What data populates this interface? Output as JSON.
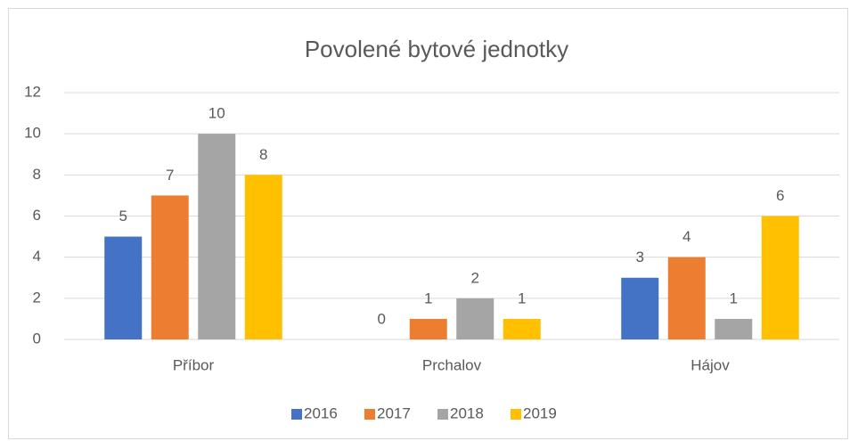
{
  "chart_data": {
    "type": "bar",
    "title": "Povolené bytové jednotky",
    "categories": [
      "Příbor",
      "Prchalov",
      "Hájov"
    ],
    "series": [
      {
        "name": "2016",
        "color": "#4472c4",
        "values": [
          5,
          0,
          3
        ]
      },
      {
        "name": "2017",
        "color": "#ed7d31",
        "values": [
          7,
          1,
          4
        ]
      },
      {
        "name": "2018",
        "color": "#a5a5a5",
        "values": [
          10,
          2,
          1
        ]
      },
      {
        "name": "2019",
        "color": "#ffc000",
        "values": [
          8,
          1,
          6
        ]
      }
    ],
    "ylim": [
      0,
      12
    ],
    "yticks": [
      0,
      2,
      4,
      6,
      8,
      10,
      12
    ],
    "grid": true,
    "legend": "bottom"
  }
}
